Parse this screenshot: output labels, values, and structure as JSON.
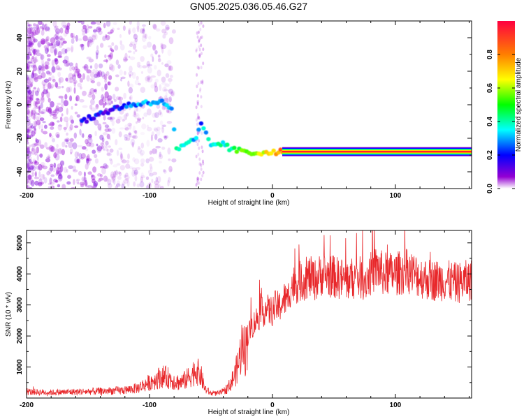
{
  "title": "GN05.2025.036.05.46.G27",
  "chart_data": [
    {
      "type": "heatmap",
      "xlabel": "Height of straight line (km)",
      "ylabel": "Frequency (Hz)",
      "xlim": [
        -200,
        162
      ],
      "ylim": [
        -50,
        50
      ],
      "x_ticks": [
        "-200",
        "-100",
        "0",
        "100"
      ],
      "x_tick_values": [
        -200,
        -100,
        0,
        100
      ],
      "y_ticks": [
        "-40",
        "-20",
        "0",
        "20",
        "40"
      ],
      "y_tick_values": [
        -40,
        -20,
        0,
        20,
        40
      ],
      "colorbar": {
        "label": "Normalized spectral amplitude",
        "range": [
          0,
          1
        ],
        "ticks": [
          "0.0",
          "0.2",
          "0.4",
          "0.6",
          "0.8"
        ],
        "tick_values": [
          0.0,
          0.2,
          0.4,
          0.6,
          0.8
        ]
      },
      "ridge": [
        {
          "x": -155,
          "y": -10,
          "a": 0.3
        },
        {
          "x": -128,
          "y": -2,
          "a": 0.3
        },
        {
          "x": -115,
          "y": 0,
          "a": 0.4
        },
        {
          "x": -105,
          "y": 1,
          "a": 0.42
        },
        {
          "x": -95,
          "y": 2,
          "a": 0.45
        },
        {
          "x": -88,
          "y": 1,
          "a": 0.45
        },
        {
          "x": -82,
          "y": -2,
          "a": 0.45
        },
        {
          "x": -78,
          "y": -27,
          "a": 0.48
        },
        {
          "x": -70,
          "y": -24,
          "a": 0.5
        },
        {
          "x": -62,
          "y": -20,
          "a": 0.45
        },
        {
          "x": -58,
          "y": -12,
          "a": 0.4
        },
        {
          "x": -50,
          "y": -24,
          "a": 0.5
        },
        {
          "x": -42,
          "y": -23,
          "a": 0.5
        },
        {
          "x": -35,
          "y": -26,
          "a": 0.55
        },
        {
          "x": -25,
          "y": -28,
          "a": 0.65
        },
        {
          "x": -15,
          "y": -29,
          "a": 0.72
        },
        {
          "x": -5,
          "y": -28,
          "a": 0.8
        },
        {
          "x": 5,
          "y": -28,
          "a": 0.88
        },
        {
          "x": 10,
          "y": -28,
          "a": 1.0
        },
        {
          "x": 162,
          "y": -28,
          "a": 1.0
        }
      ]
    },
    {
      "type": "line",
      "xlabel": "Height of straight line (km)",
      "ylabel": "SNR (10 * v/v)",
      "xlim": [
        -200,
        162
      ],
      "ylim": [
        0,
        5400
      ],
      "x_ticks": [
        "-200",
        "-100",
        "0",
        "100"
      ],
      "x_tick_values": [
        -200,
        -100,
        0,
        100
      ],
      "y_ticks": [
        "1000",
        "2000",
        "3000",
        "4000",
        "5000"
      ],
      "y_tick_values": [
        1000,
        2000,
        3000,
        4000,
        5000
      ],
      "color": "#e8272a",
      "series": [
        {
          "x": [
            -200,
            -180,
            -160,
            -140,
            -120,
            -110,
            -100,
            -95,
            -90,
            -85,
            -80,
            -75,
            -70,
            -65,
            -62,
            -58,
            -55,
            -50,
            -45,
            -40,
            -35,
            -30,
            -27,
            -25,
            -22,
            -20,
            -17,
            -15,
            -12,
            -10,
            -7,
            -5,
            -3,
            0,
            3,
            5,
            8,
            10,
            12,
            15,
            20,
            25,
            30,
            35,
            40,
            50,
            60,
            70,
            75,
            80,
            85,
            90,
            100,
            110,
            120,
            130,
            140,
            150,
            160
          ],
          "y": [
            200,
            180,
            200,
            220,
            250,
            320,
            500,
            600,
            700,
            650,
            550,
            500,
            600,
            800,
            900,
            700,
            300,
            150,
            150,
            200,
            400,
            800,
            1200,
            1700,
            1500,
            2000,
            2300,
            2400,
            2600,
            2700,
            2800,
            2900,
            2800,
            2800,
            3000,
            2900,
            3100,
            3200,
            3100,
            3600,
            3700,
            3800,
            3900,
            3800,
            4000,
            3900,
            3800,
            3900,
            3800,
            4000,
            4200,
            4000,
            4000,
            4100,
            3900,
            3800,
            3800,
            3700,
            3800
          ]
        }
      ]
    }
  ]
}
